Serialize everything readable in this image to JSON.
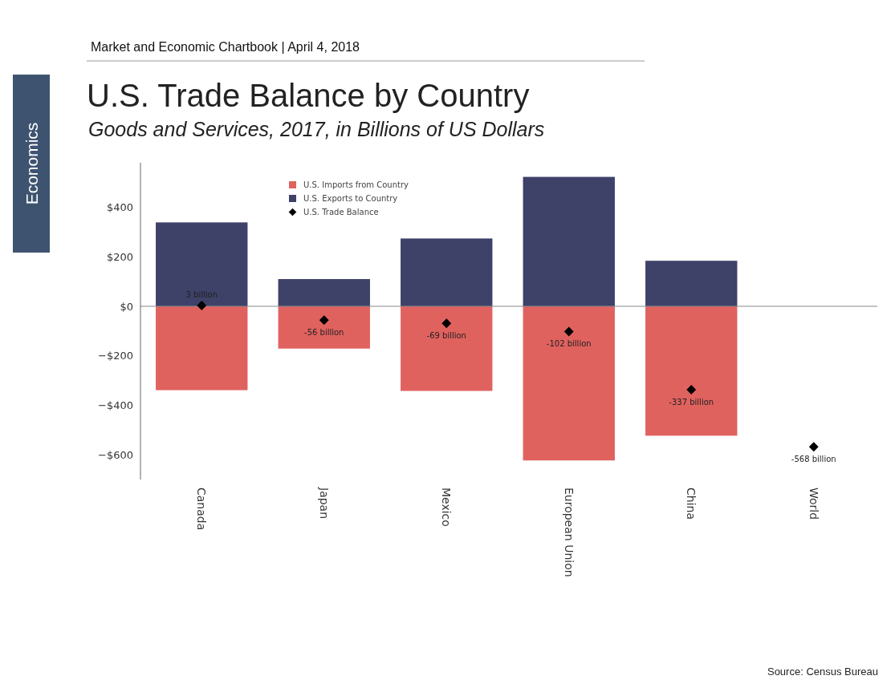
{
  "chart_data": {
    "type": "bar",
    "title": "U.S. Trade Balance by Country",
    "subtitle": "Goods and Services, 2017, in Billions of US Dollars",
    "annotations": [
      "Market and Economic Chartbook | April 4, 2018",
      "Economics",
      "Source: Census Bureau"
    ],
    "categories": [
      "Canada",
      "Japan",
      "Mexico",
      "European Union",
      "China",
      "World"
    ],
    "stacked": true,
    "series": [
      {
        "name": "U.S. Imports from Country",
        "color": "#e0625f",
        "values": [
          -339,
          -171,
          -342,
          -623,
          -523,
          null
        ]
      },
      {
        "name": "U.S. Exports to Country",
        "color": "#3e4168",
        "values": [
          339,
          110,
          274,
          523,
          184,
          null
        ]
      },
      {
        "name": "U.S. Trade Balance",
        "type": "scatter",
        "marker": "diamond",
        "color": "#000000",
        "values": [
          3,
          -56,
          -69,
          -102,
          -337,
          -568
        ],
        "value_labels": [
          "3 billion",
          "-56 billion",
          "-69 billion",
          "-102 billion",
          "-337 billion",
          "-568 billion"
        ]
      }
    ],
    "ylim": [
      -700,
      580
    ],
    "yticks": [
      {
        "value": -600,
        "label": "−$600"
      },
      {
        "value": -400,
        "label": "−$400"
      },
      {
        "value": -200,
        "label": "−$200"
      },
      {
        "value": 0,
        "label": "$0"
      },
      {
        "value": 200,
        "label": "$200"
      },
      {
        "value": 400,
        "label": "$400"
      }
    ],
    "legend": "top"
  }
}
